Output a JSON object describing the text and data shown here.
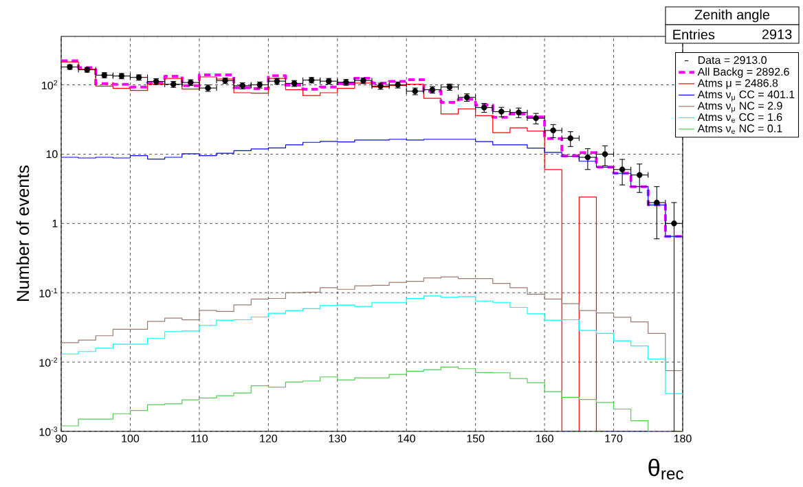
{
  "chart_data": {
    "type": "histogram",
    "title": "Zenith angle",
    "xlabel": "θ$_{rec}$",
    "ylabel": "Number of events",
    "annotations": [
      "Entries",
      "2913"
    ],
    "bins": [
      90,
      92.5,
      95,
      97.5,
      100,
      102.5,
      105,
      107.5,
      110,
      112.5,
      115,
      117.5,
      120,
      122.5,
      125,
      127.5,
      130,
      132.5,
      135,
      137.5,
      140,
      142.5,
      145,
      147.5,
      150,
      152.5,
      155,
      157.5,
      160,
      162.5,
      165,
      167.5,
      170,
      172.5,
      175,
      177.5,
      180
    ],
    "xlim": [
      90,
      180
    ],
    "xticks": [
      90,
      100,
      110,
      120,
      130,
      140,
      150,
      160,
      170,
      180
    ],
    "ylim": [
      0.001,
      500
    ],
    "yticks": [
      {
        "value": 0.001,
        "label": "10$^{-3}$"
      },
      {
        "value": 0.01,
        "label": "10$^{-2}$"
      },
      {
        "value": 0.1,
        "label": "10$^{-1}$"
      },
      1,
      10,
      {
        "value": 100,
        "label": "10$^{2}$"
      }
    ],
    "log": true,
    "grid": true,
    "legend": "top right",
    "series": [
      {
        "name": "Data = 2913.0",
        "type": "scatter",
        "marker": "circle",
        "color": "#000000",
        "x": [
          91.25,
          93.75,
          96.25,
          98.75,
          101.25,
          103.75,
          106.25,
          108.75,
          111.25,
          113.75,
          116.25,
          118.75,
          121.25,
          123.75,
          126.25,
          128.75,
          131.25,
          133.75,
          136.25,
          138.75,
          141.25,
          143.75,
          146.25,
          148.75,
          151.25,
          153.75,
          156.25,
          158.75,
          161.25,
          163.75,
          166.25,
          168.75,
          171.25,
          173.75,
          176.25,
          178.75
        ],
        "values": [
          181,
          165,
          138,
          134,
          128,
          112,
          102,
          108,
          90,
          115,
          97,
          100,
          113,
          105,
          117,
          113,
          109,
          115,
          96,
          100,
          81,
          85,
          93,
          66,
          47,
          41,
          40,
          33,
          22,
          17,
          9,
          10,
          6,
          5,
          2,
          1
        ],
        "errors": [
          13.5,
          12.8,
          11.7,
          11.7,
          11.3,
          10.6,
          10.1,
          10.4,
          9.5,
          10.7,
          9.8,
          10,
          10.6,
          10.2,
          10.8,
          10.6,
          10.4,
          10.7,
          9.8,
          9.9,
          9,
          9.2,
          9.6,
          8.1,
          6.9,
          6.4,
          6.3,
          5.7,
          4.7,
          4.1,
          3,
          3.2,
          2.4,
          2.2,
          1.4,
          [
            0.999,
            1
          ]
        ],
        "xerrors": [
          1.25,
          1.25,
          1.25,
          1.25,
          1.25,
          1.25,
          1.25,
          1.25,
          1.25,
          1.25,
          1.25,
          1.25,
          1.25,
          1.25,
          1.25,
          1.25,
          1.25,
          1.25,
          1.25,
          1.25,
          1.25,
          1.25,
          1.25,
          1.25,
          1.25,
          1.25,
          1.25,
          1.25,
          1.25,
          1.25,
          1.25,
          1.25,
          1.25,
          1.25,
          1.25,
          1.25
        ]
      },
      {
        "name": "All Backg = 2892.6",
        "line_style": "dashed",
        "color": "#ff00ff",
        "values": [
          222,
          177,
          104,
          102,
          93,
          108,
          133,
          97,
          139,
          139,
          91,
          88,
          135,
          99,
          86,
          93,
          104,
          124,
          106,
          112,
          119,
          81,
          56,
          62,
          51,
          34,
          38,
          34.5,
          16.8,
          9.5,
          10.5,
          6.5,
          5.3,
          3.4,
          1.85,
          0.65
        ]
      },
      {
        "name": "Atms μ = 2486.8",
        "color": "#ff0000",
        "values": [
          214,
          168,
          96,
          89,
          83,
          102,
          124,
          87,
          130,
          121,
          77,
          76,
          124,
          85,
          70,
          77,
          89,
          106,
          93,
          98,
          102,
          64,
          38,
          45,
          36,
          20.4,
          24,
          21.5,
          6.0,
          null,
          2.4,
          null,
          null,
          null,
          null,
          null
        ]
      },
      {
        "name": "Atms ν$_{μ}$ CC = 401.1",
        "color": "#0000ff",
        "values": [
          9.0,
          8.8,
          9.0,
          8.8,
          9.5,
          8.5,
          9.0,
          10.1,
          9.5,
          10.3,
          11.2,
          11.9,
          12.3,
          13.6,
          14.8,
          15.3,
          15.0,
          16.0,
          16.0,
          16.4,
          16.0,
          16.4,
          16.4,
          16.4,
          15.2,
          13.6,
          13.6,
          12.2,
          10.6,
          9.3,
          7.9,
          6.5,
          5.3,
          3.4,
          1.85,
          0.65
        ]
      },
      {
        "name": "Atms ν$_{μ}$ NC = 2.9",
        "color": "#9c7a6e",
        "values": [
          0.019,
          0.0207,
          0.024,
          0.0297,
          0.0297,
          0.0387,
          0.043,
          0.0407,
          0.0557,
          0.0537,
          0.0668,
          0.081,
          0.0827,
          0.1,
          0.102,
          0.118,
          0.112,
          0.126,
          0.128,
          0.141,
          0.146,
          0.164,
          0.169,
          0.16,
          0.16,
          0.136,
          0.118,
          0.095,
          0.081,
          0.0695,
          0.0553,
          0.0512,
          0.0444,
          0.0379,
          0.0259,
          0.0075
        ]
      },
      {
        "name": "Atms ν$_{e}$ CC = 1.6",
        "color": "#00ffff",
        "values": [
          0.0131,
          0.0142,
          0.0159,
          0.0181,
          0.0181,
          0.0219,
          0.0275,
          0.0281,
          0.0338,
          0.0402,
          0.0408,
          0.0447,
          0.0505,
          0.0553,
          0.0588,
          0.0653,
          0.0664,
          0.0634,
          0.0726,
          0.0726,
          0.0827,
          0.0899,
          0.0859,
          0.0879,
          0.076,
          0.0726,
          0.0615,
          0.0497,
          0.0402,
          0.0408,
          0.0285,
          0.0259,
          0.0203,
          0.0171,
          0.011,
          0.0035
        ]
      },
      {
        "name": "Atms ν$_{e}$ NC = 0.1",
        "color": "#55cc55",
        "values": [
          0.0012,
          0.0015,
          0.0015,
          0.0018,
          0.002,
          0.00243,
          0.0025,
          0.00285,
          0.00303,
          0.00327,
          0.00358,
          0.00454,
          0.00434,
          0.00516,
          0.00532,
          0.0061,
          0.00553,
          0.00591,
          0.0059,
          0.00664,
          0.00738,
          0.00778,
          0.00845,
          0.00802,
          0.00705,
          0.007,
          0.00578,
          0.00505,
          0.00375,
          0.0031,
          0.00288,
          0.00262,
          0.0021,
          0.00142,
          null,
          null
        ]
      }
    ]
  }
}
